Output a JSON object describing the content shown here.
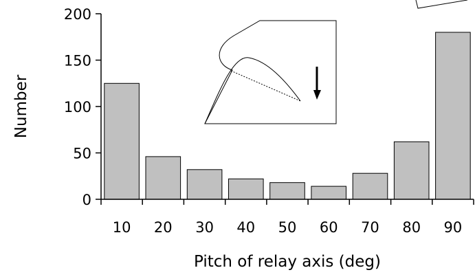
{
  "chart_data": {
    "type": "bar",
    "categories": [
      "10",
      "20",
      "30",
      "40",
      "50",
      "60",
      "70",
      "80",
      "90"
    ],
    "values": [
      125,
      46,
      32,
      22,
      18,
      14,
      28,
      62,
      180
    ],
    "xlabel": "Pitch of relay axis (deg)",
    "ylabel": "Number",
    "ylim": [
      0,
      200
    ],
    "yticks": [
      "0",
      "50",
      "100",
      "150",
      "200"
    ],
    "grid": false,
    "bar_color": "#c0c0c0",
    "bar_edge_color": "#000000"
  },
  "inset": {
    "description_icon": "insect-body-outline-with-relay-axis-and-down-arrow"
  }
}
